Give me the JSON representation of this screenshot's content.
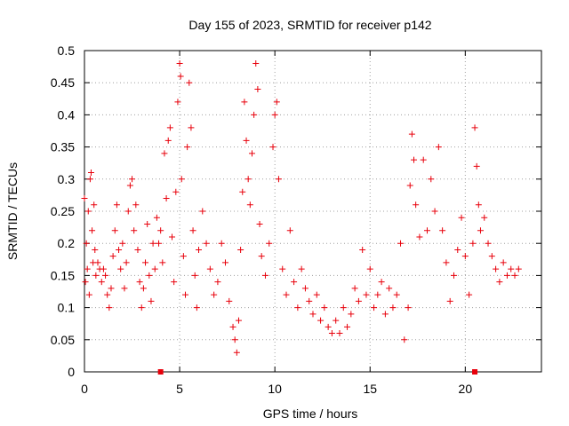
{
  "chart_data": {
    "type": "scatter",
    "title": "Day 155 of 2023, SRMTID for receiver p142",
    "xlabel": "GPS time / hours",
    "ylabel": "SRMTID / TECUs",
    "xlim": [
      0,
      24
    ],
    "ylim": [
      0,
      0.5
    ],
    "x_ticks": [
      0,
      5,
      10,
      15,
      20
    ],
    "x_tick_labels": [
      "0",
      "5",
      "10",
      "15",
      "20"
    ],
    "y_ticks": [
      0,
      0.05,
      0.1,
      0.15,
      0.2,
      0.25,
      0.3,
      0.35,
      0.4,
      0.45,
      0.5
    ],
    "y_tick_labels": [
      "0",
      "0.05",
      "0.1",
      "0.15",
      "0.2",
      "0.25",
      "0.3",
      "0.35",
      "0.4",
      "0.45",
      "0.5"
    ],
    "grid": true,
    "marker": "plus",
    "color": "#e8000b",
    "series": [
      {
        "name": "SRMTID",
        "points": [
          [
            0.0,
            0.27
          ],
          [
            0.05,
            0.14
          ],
          [
            0.1,
            0.2
          ],
          [
            0.15,
            0.16
          ],
          [
            0.2,
            0.25
          ],
          [
            0.25,
            0.12
          ],
          [
            0.3,
            0.3
          ],
          [
            0.35,
            0.31
          ],
          [
            0.4,
            0.22
          ],
          [
            0.45,
            0.17
          ],
          [
            0.5,
            0.26
          ],
          [
            0.55,
            0.19
          ],
          [
            0.6,
            0.15
          ],
          [
            0.7,
            0.17
          ],
          [
            0.8,
            0.16
          ],
          [
            0.9,
            0.14
          ],
          [
            1.0,
            0.16
          ],
          [
            1.1,
            0.15
          ],
          [
            1.2,
            0.12
          ],
          [
            1.3,
            0.1
          ],
          [
            1.4,
            0.13
          ],
          [
            1.5,
            0.18
          ],
          [
            1.6,
            0.22
          ],
          [
            1.7,
            0.26
          ],
          [
            1.8,
            0.19
          ],
          [
            1.9,
            0.16
          ],
          [
            2.0,
            0.2
          ],
          [
            2.1,
            0.13
          ],
          [
            2.2,
            0.17
          ],
          [
            2.3,
            0.25
          ],
          [
            2.4,
            0.29
          ],
          [
            2.5,
            0.3
          ],
          [
            2.6,
            0.22
          ],
          [
            2.7,
            0.26
          ],
          [
            2.8,
            0.19
          ],
          [
            2.9,
            0.14
          ],
          [
            3.0,
            0.1
          ],
          [
            3.1,
            0.13
          ],
          [
            3.2,
            0.17
          ],
          [
            3.3,
            0.23
          ],
          [
            3.4,
            0.15
          ],
          [
            3.5,
            0.11
          ],
          [
            3.6,
            0.2
          ],
          [
            3.7,
            0.16
          ],
          [
            3.8,
            0.24
          ],
          [
            3.9,
            0.2
          ],
          [
            4.0,
            0.22
          ],
          [
            4.1,
            0.17
          ],
          [
            4.2,
            0.34
          ],
          [
            4.3,
            0.27
          ],
          [
            4.4,
            0.36
          ],
          [
            4.5,
            0.38
          ],
          [
            4.6,
            0.21
          ],
          [
            4.7,
            0.14
          ],
          [
            4.8,
            0.28
          ],
          [
            4.9,
            0.42
          ],
          [
            5.0,
            0.48
          ],
          [
            5.05,
            0.46
          ],
          [
            5.1,
            0.3
          ],
          [
            5.2,
            0.18
          ],
          [
            5.3,
            0.12
          ],
          [
            5.4,
            0.35
          ],
          [
            5.5,
            0.45
          ],
          [
            5.6,
            0.38
          ],
          [
            5.7,
            0.22
          ],
          [
            5.8,
            0.15
          ],
          [
            5.9,
            0.1
          ],
          [
            6.0,
            0.19
          ],
          [
            6.2,
            0.25
          ],
          [
            6.4,
            0.2
          ],
          [
            6.6,
            0.16
          ],
          [
            6.8,
            0.12
          ],
          [
            7.0,
            0.14
          ],
          [
            7.2,
            0.2
          ],
          [
            7.4,
            0.17
          ],
          [
            7.6,
            0.11
          ],
          [
            7.8,
            0.07
          ],
          [
            7.9,
            0.05
          ],
          [
            8.0,
            0.03
          ],
          [
            8.1,
            0.08
          ],
          [
            8.2,
            0.19
          ],
          [
            8.3,
            0.28
          ],
          [
            8.4,
            0.42
          ],
          [
            8.5,
            0.36
          ],
          [
            8.6,
            0.3
          ],
          [
            8.7,
            0.26
          ],
          [
            8.8,
            0.34
          ],
          [
            8.9,
            0.4
          ],
          [
            9.0,
            0.48
          ],
          [
            9.1,
            0.44
          ],
          [
            9.2,
            0.23
          ],
          [
            9.3,
            0.18
          ],
          [
            9.5,
            0.15
          ],
          [
            9.7,
            0.2
          ],
          [
            9.9,
            0.35
          ],
          [
            10.0,
            0.4
          ],
          [
            10.1,
            0.42
          ],
          [
            10.2,
            0.3
          ],
          [
            10.4,
            0.16
          ],
          [
            10.6,
            0.12
          ],
          [
            10.8,
            0.22
          ],
          [
            11.0,
            0.14
          ],
          [
            11.2,
            0.1
          ],
          [
            11.4,
            0.16
          ],
          [
            11.6,
            0.13
          ],
          [
            11.8,
            0.11
          ],
          [
            12.0,
            0.09
          ],
          [
            12.2,
            0.12
          ],
          [
            12.4,
            0.08
          ],
          [
            12.6,
            0.1
          ],
          [
            12.8,
            0.07
          ],
          [
            13.0,
            0.06
          ],
          [
            13.2,
            0.08
          ],
          [
            13.4,
            0.06
          ],
          [
            13.6,
            0.1
          ],
          [
            13.8,
            0.07
          ],
          [
            14.0,
            0.09
          ],
          [
            14.2,
            0.13
          ],
          [
            14.4,
            0.11
          ],
          [
            14.6,
            0.19
          ],
          [
            14.8,
            0.12
          ],
          [
            15.0,
            0.16
          ],
          [
            15.2,
            0.1
          ],
          [
            15.4,
            0.12
          ],
          [
            15.6,
            0.14
          ],
          [
            15.8,
            0.09
          ],
          [
            16.0,
            0.13
          ],
          [
            16.2,
            0.1
          ],
          [
            16.4,
            0.12
          ],
          [
            16.6,
            0.2
          ],
          [
            16.8,
            0.05
          ],
          [
            17.0,
            0.1
          ],
          [
            17.1,
            0.29
          ],
          [
            17.2,
            0.37
          ],
          [
            17.3,
            0.33
          ],
          [
            17.4,
            0.26
          ],
          [
            17.6,
            0.21
          ],
          [
            17.8,
            0.33
          ],
          [
            18.0,
            0.22
          ],
          [
            18.2,
            0.3
          ],
          [
            18.4,
            0.25
          ],
          [
            18.6,
            0.35
          ],
          [
            18.8,
            0.22
          ],
          [
            19.0,
            0.17
          ],
          [
            19.2,
            0.11
          ],
          [
            19.4,
            0.15
          ],
          [
            19.6,
            0.19
          ],
          [
            19.8,
            0.24
          ],
          [
            20.0,
            0.18
          ],
          [
            20.2,
            0.12
          ],
          [
            20.4,
            0.2
          ],
          [
            20.5,
            0.38
          ],
          [
            20.6,
            0.32
          ],
          [
            20.7,
            0.26
          ],
          [
            20.8,
            0.22
          ],
          [
            21.0,
            0.24
          ],
          [
            21.2,
            0.2
          ],
          [
            21.4,
            0.18
          ],
          [
            21.6,
            0.16
          ],
          [
            21.8,
            0.14
          ],
          [
            22.0,
            0.17
          ],
          [
            22.2,
            0.15
          ],
          [
            22.4,
            0.16
          ],
          [
            22.6,
            0.15
          ],
          [
            22.8,
            0.16
          ]
        ]
      }
    ],
    "axis_markers": [
      4.0,
      20.5
    ]
  }
}
